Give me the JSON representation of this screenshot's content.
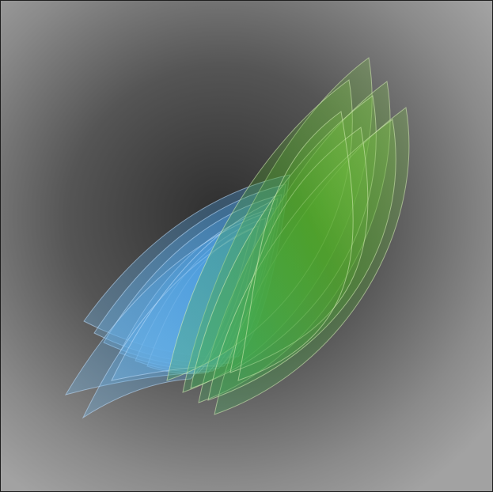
{
  "artwork": {
    "kind": "abstract layered petal composition",
    "background": {
      "center_color": "#2e2e2e",
      "edge_color": "#a2a2a2",
      "border_color": "#1e1e1e"
    },
    "petal_groups": [
      {
        "name": "blue-fan",
        "fill": "#4aa3e6",
        "stroke": "#bfe0ff",
        "layers": 9
      },
      {
        "name": "green-fan",
        "fill": "#52b52c",
        "stroke": "#d8f0b8",
        "layers": 8
      }
    ]
  }
}
